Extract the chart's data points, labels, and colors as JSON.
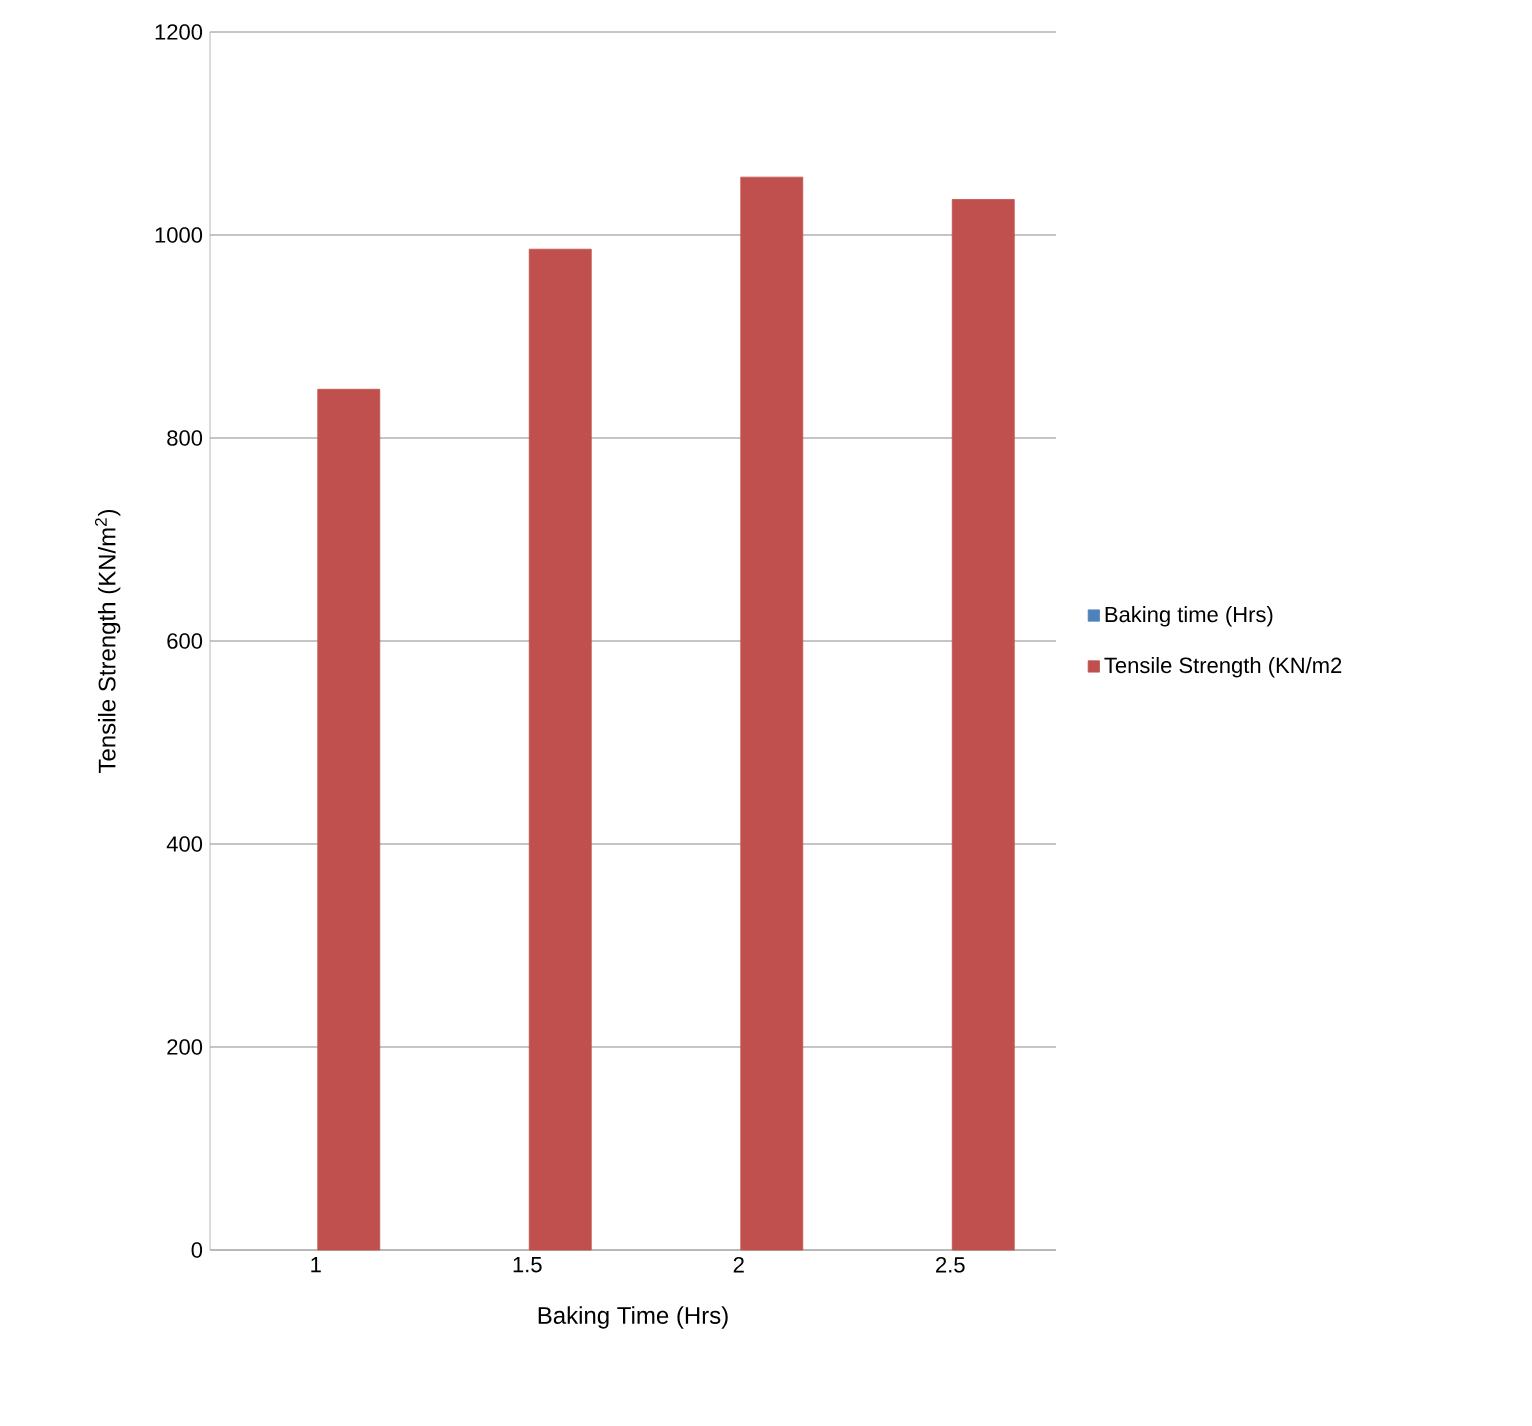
{
  "chart_data": {
    "type": "bar",
    "xlabel": "Baking Time (Hrs)",
    "ylabel": "Tensile Strength (KN/m$^{2}$)",
    "categories": [
      "1",
      "1.5",
      "2",
      "2.5"
    ],
    "series": [
      {
        "name": "Baking time  (Hrs)",
        "color": "#4f81bd",
        "values": [
          null,
          null,
          null,
          null
        ]
      },
      {
        "name": "Tensile Strength  (KN/m2",
        "color": "#c0504d",
        "values": [
          848,
          986,
          1057,
          1035
        ]
      }
    ],
    "ylim": [
      0,
      1200
    ],
    "yticks": [
      0,
      200,
      400,
      600,
      800,
      1000,
      1200
    ],
    "grid": "y",
    "legend": "right"
  }
}
